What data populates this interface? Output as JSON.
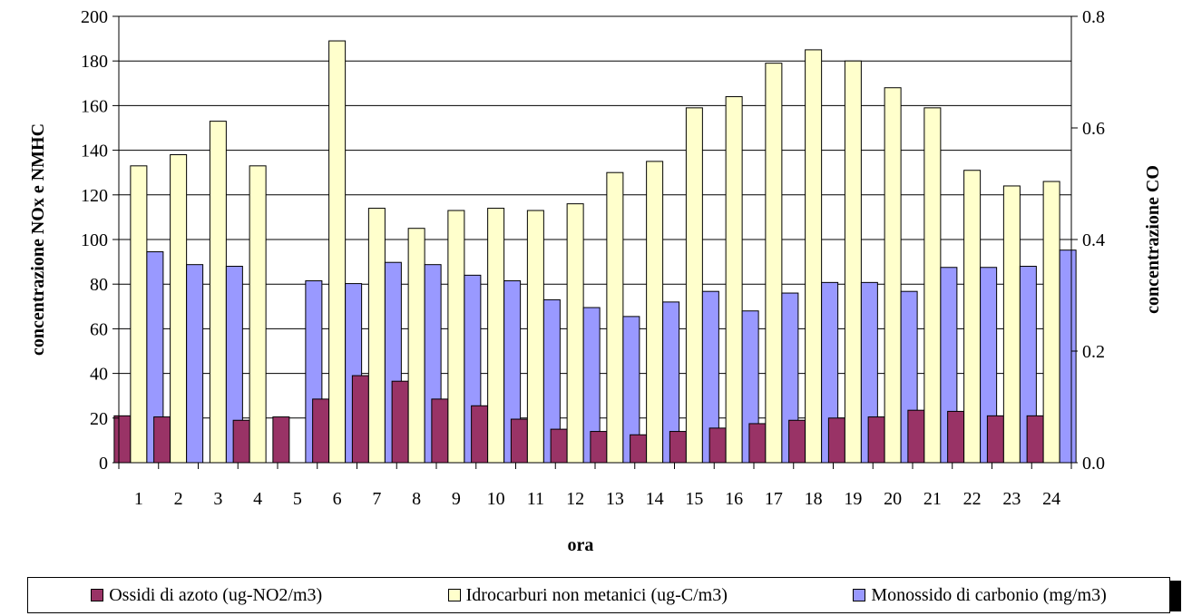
{
  "chart_data": {
    "type": "bar",
    "xlabel": "ora",
    "ylabel": "concentrazione NOx e NMHC",
    "y2label": "concentrazione CO",
    "categories": [
      "1",
      "2",
      "3",
      "4",
      "5",
      "6",
      "7",
      "8",
      "9",
      "10",
      "11",
      "12",
      "13",
      "14",
      "15",
      "16",
      "17",
      "18",
      "19",
      "20",
      "21",
      "22",
      "23",
      "24"
    ],
    "ylim": [
      0,
      200
    ],
    "y2lim": [
      0,
      0.8
    ],
    "yticks": [
      "0",
      "20",
      "40",
      "60",
      "80",
      "100",
      "120",
      "140",
      "160",
      "180",
      "200"
    ],
    "y2ticks": [
      "0.0",
      "0.2",
      "0.4",
      "0.6",
      "0.8"
    ],
    "grid": true,
    "legend_position": "bottom",
    "series": [
      {
        "name": "Ossidi di azoto (ug-NO2/m3)",
        "axis": "left",
        "color": "#993366",
        "values": [
          21,
          20.5,
          null,
          19,
          20.5,
          28.5,
          39,
          36.5,
          28.5,
          25.5,
          19.5,
          15,
          14,
          12.5,
          14,
          15.5,
          17.5,
          19,
          20,
          20.5,
          23.5,
          23,
          21,
          21
        ]
      },
      {
        "name": "Idrocarburi non metanici (ug-C/m3)",
        "axis": "left",
        "color": "#FFFFCC",
        "values": [
          133,
          138,
          153,
          133,
          null,
          189,
          114,
          105,
          113,
          114,
          113,
          116,
          130,
          135,
          159,
          164,
          179,
          185,
          180,
          168,
          159,
          131,
          124,
          126
        ]
      },
      {
        "name": "Monossido di carbonio (mg/m3)",
        "axis": "right",
        "color": "#9999FF",
        "values": [
          0.378,
          0.355,
          0.352,
          null,
          0.326,
          0.321,
          0.359,
          0.355,
          0.336,
          0.326,
          0.292,
          0.278,
          0.262,
          0.288,
          0.307,
          0.272,
          0.304,
          0.323,
          0.323,
          0.307,
          0.35,
          0.35,
          0.352,
          0.381
        ]
      }
    ]
  }
}
